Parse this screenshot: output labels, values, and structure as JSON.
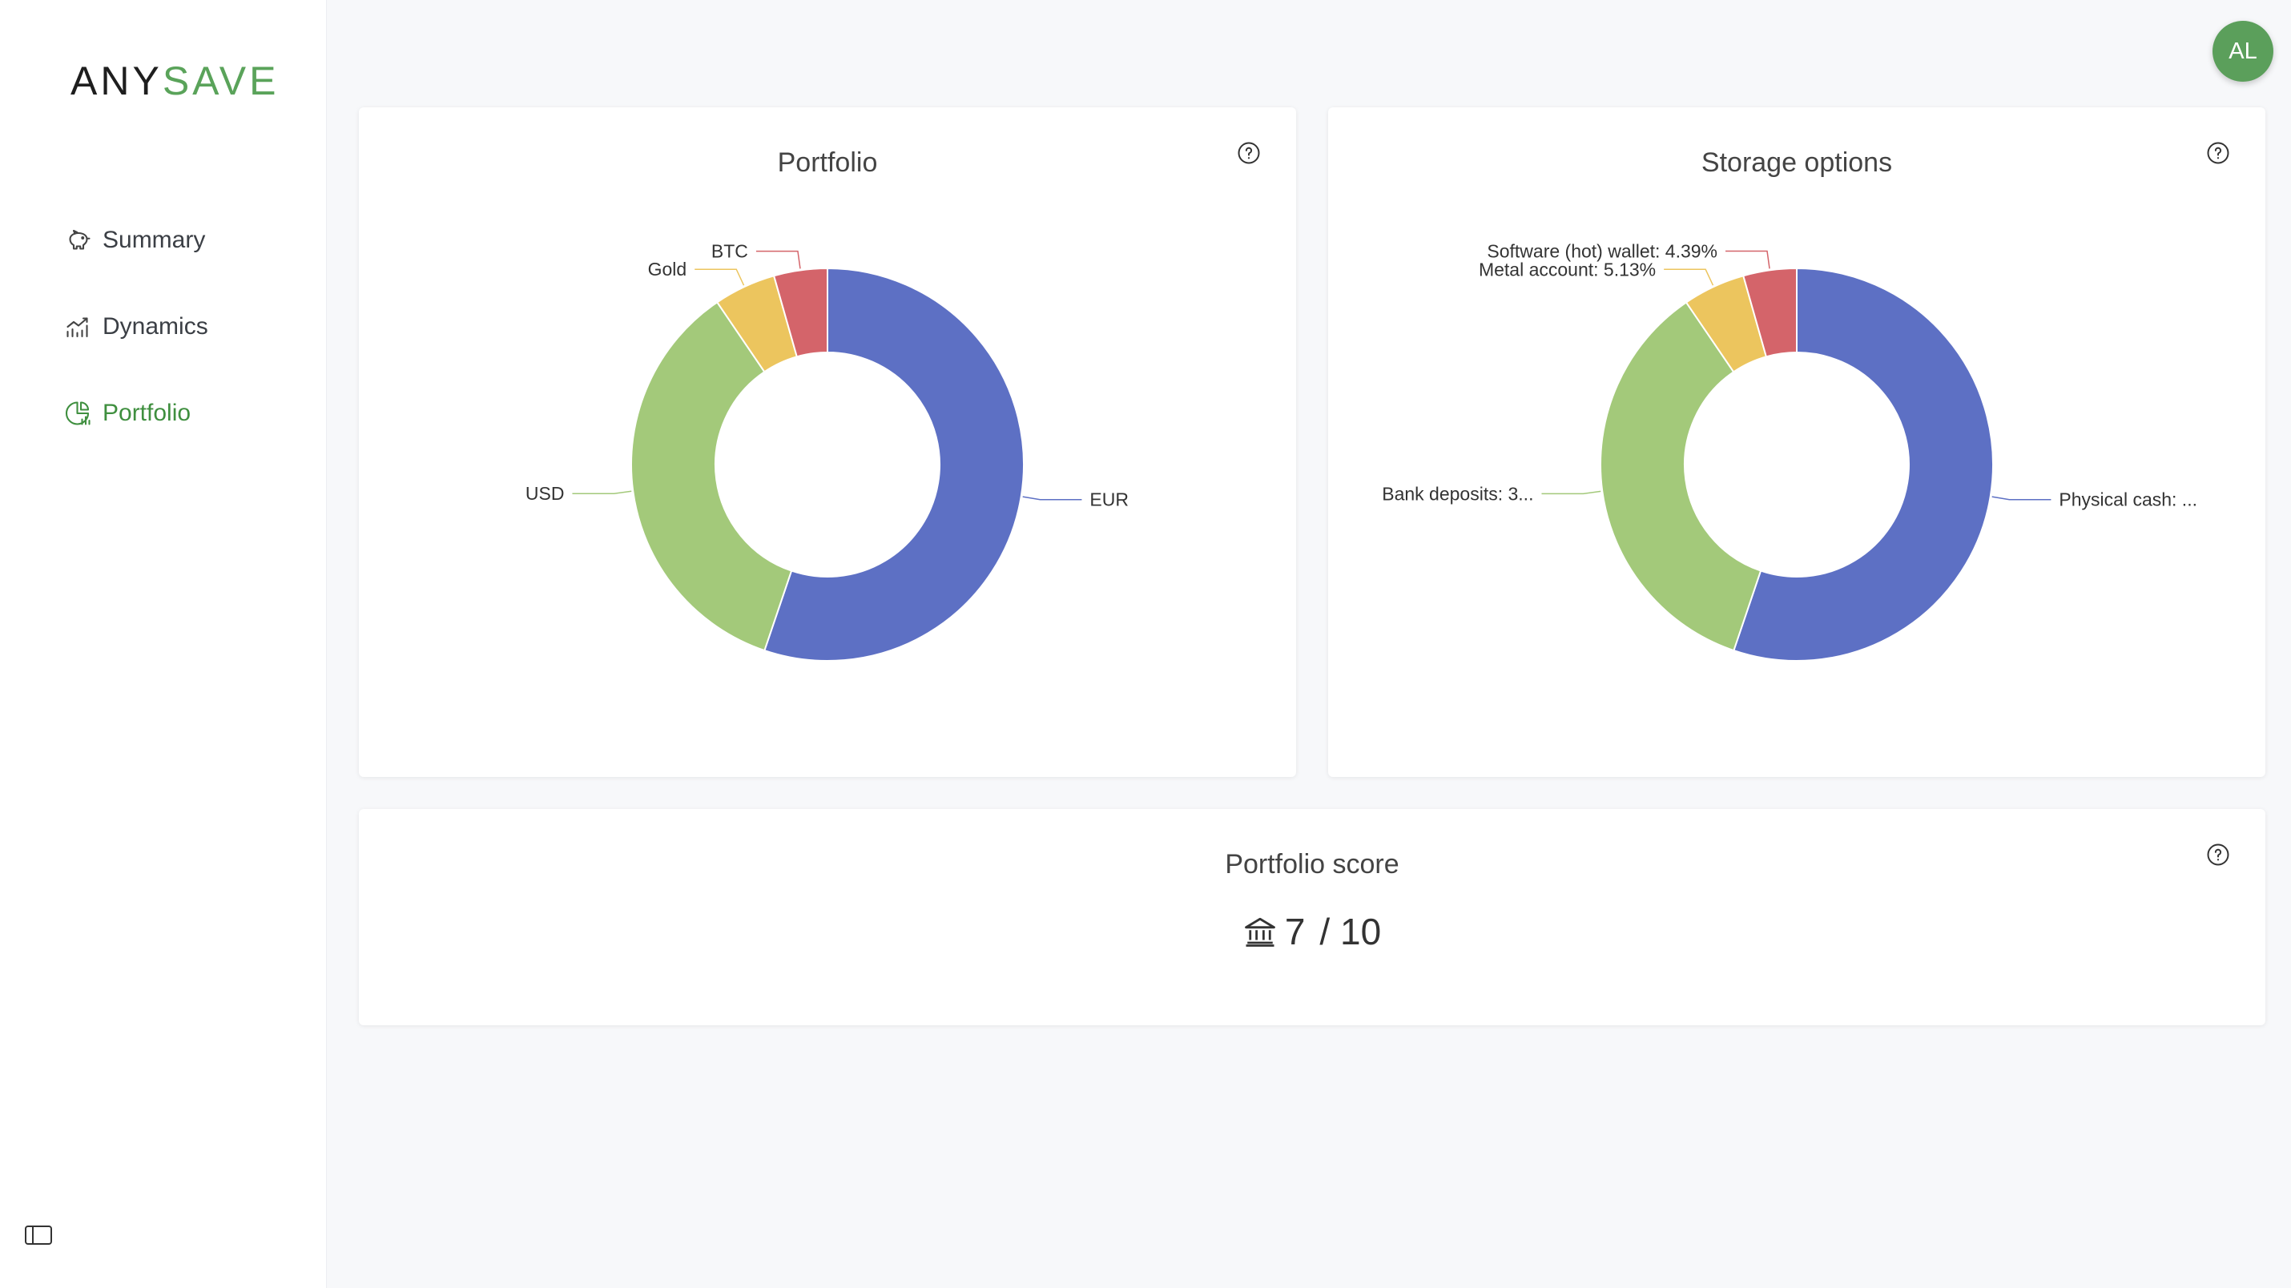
{
  "sidebar": {
    "logo_left": "ANY",
    "logo_right": "SAVE",
    "items": [
      {
        "label": "Summary",
        "icon": "piggy-bank-icon"
      },
      {
        "label": "Dynamics",
        "icon": "chart-line-icon"
      },
      {
        "label": "Portfolio",
        "icon": "pie-chart-icon",
        "active": true
      }
    ]
  },
  "user": {
    "initials": "AL"
  },
  "portfolio_card": {
    "title": "Portfolio"
  },
  "storage_card": {
    "title": "Storage options"
  },
  "score_card": {
    "title": "Portfolio score",
    "score": "7",
    "max": "/ 10"
  },
  "colors": {
    "blue": "#5d70c4",
    "green": "#a3c97a",
    "yellow": "#ecc55e",
    "red": "#d4646a",
    "accent": "#5aa35a"
  },
  "chart_data": [
    {
      "type": "pie",
      "title": "Portfolio",
      "categories": [
        "EUR",
        "USD",
        "Gold",
        "BTC"
      ],
      "values": [
        55.2,
        35.3,
        5.1,
        4.4
      ],
      "colors": [
        "#5d70c4",
        "#a3c97a",
        "#ecc55e",
        "#d4646a"
      ]
    },
    {
      "type": "pie",
      "title": "Storage options",
      "categories": [
        "Physical cash: ...",
        "Bank deposits: 3...",
        "Metal account: 5.13%",
        "Software (hot) wallet: 4.39%"
      ],
      "values": [
        55.2,
        35.28,
        5.13,
        4.39
      ],
      "colors": [
        "#5d70c4",
        "#a3c97a",
        "#ecc55e",
        "#d4646a"
      ]
    }
  ]
}
